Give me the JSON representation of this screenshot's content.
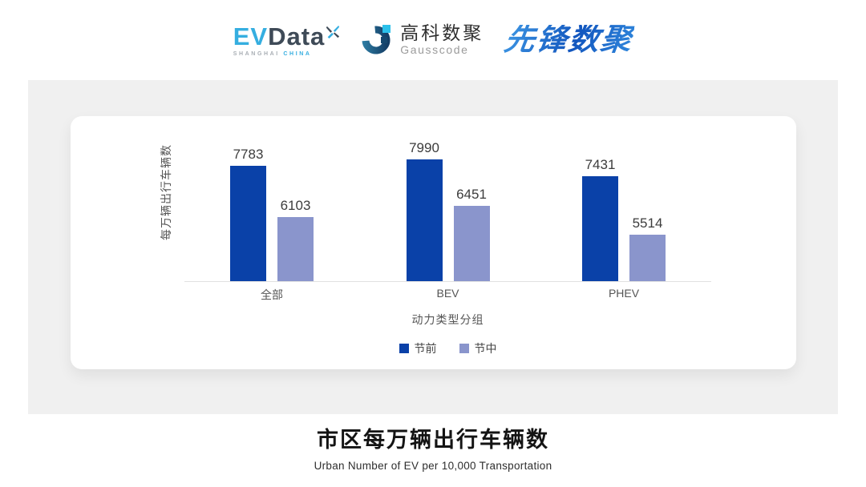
{
  "header": {
    "evdata": {
      "part_blue": "EV",
      "part_dark": "Data",
      "sub_left": "SHANGHAI",
      "sub_right": "CHINA",
      "colors": {
        "blue": "#35AEE0",
        "dark": "#3E4A57"
      }
    },
    "gausscode": {
      "cn": "高科数聚",
      "en": "Gausscode"
    },
    "xianfeng": {
      "text": "先锋数聚",
      "color": "#1E6FD0"
    }
  },
  "chart_data": {
    "type": "bar",
    "title": "市区每万辆出行车辆数",
    "subtitle": "Urban Number of EV per 10,000 Transportation",
    "xlabel": "动力类型分组",
    "ylabel": "每万辆出行车辆数",
    "categories": [
      "全部",
      "BEV",
      "PHEV"
    ],
    "series": [
      {
        "name": "节前",
        "color": "#0A41A8",
        "values": [
          7783,
          7990,
          7431
        ]
      },
      {
        "name": "节中",
        "color": "#8A95CC",
        "values": [
          6103,
          6451,
          5514
        ]
      }
    ],
    "ylim": [
      4000,
      8400
    ],
    "grid": false,
    "legend_position": "bottom",
    "axis_line_color": "#E1E1E1"
  }
}
